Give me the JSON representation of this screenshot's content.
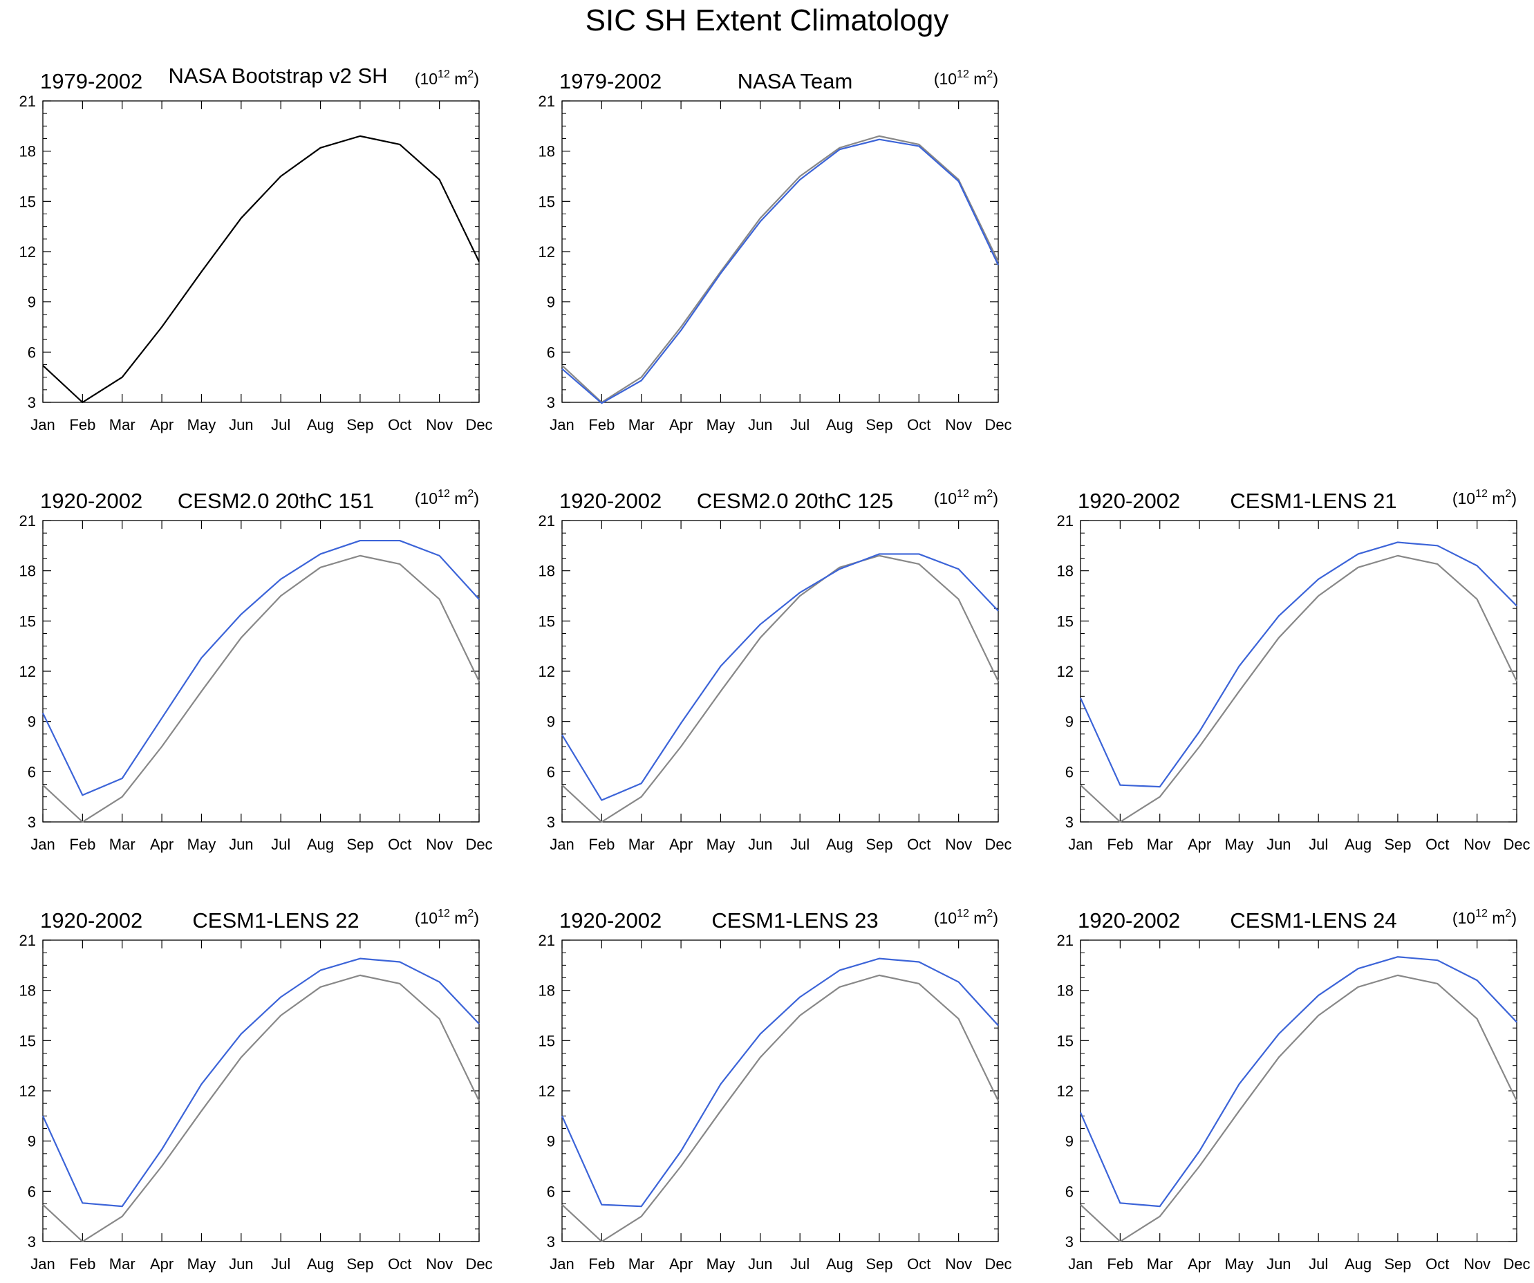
{
  "title": "SIC SH Extent Climatology",
  "chart_data": [
    {
      "type": "line",
      "period": "1979-2002",
      "title": "NASA Bootstrap v2 SH",
      "units_base": "(10",
      "units_exp": "12",
      "units_unit": " m",
      "units_pow": "2",
      "units_close": ")",
      "categories": [
        "Jan",
        "Feb",
        "Mar",
        "Apr",
        "May",
        "Jun",
        "Jul",
        "Aug",
        "Sep",
        "Oct",
        "Nov",
        "Dec"
      ],
      "ylim": [
        3,
        21
      ],
      "yticks": [
        3,
        6,
        9,
        12,
        15,
        18,
        21
      ],
      "series": [
        {
          "name": "NASA Bootstrap v2 SH",
          "color": "#000000",
          "values": [
            5.2,
            3.0,
            4.5,
            7.5,
            10.8,
            14.0,
            16.5,
            18.2,
            18.9,
            18.4,
            16.3,
            11.4
          ]
        }
      ]
    },
    {
      "type": "line",
      "period": "1979-2002",
      "title": "NASA Team",
      "units_base": "(10",
      "units_exp": "12",
      "units_unit": " m",
      "units_pow": "2",
      "units_close": ")",
      "categories": [
        "Jan",
        "Feb",
        "Mar",
        "Apr",
        "May",
        "Jun",
        "Jul",
        "Aug",
        "Sep",
        "Oct",
        "Nov",
        "Dec"
      ],
      "ylim": [
        3,
        21
      ],
      "yticks": [
        3,
        6,
        9,
        12,
        15,
        18,
        21
      ],
      "series": [
        {
          "name": "NASA Bootstrap v2 SH",
          "color": "#888888",
          "values": [
            5.2,
            3.0,
            4.5,
            7.5,
            10.8,
            14.0,
            16.5,
            18.2,
            18.9,
            18.4,
            16.3,
            11.4
          ]
        },
        {
          "name": "NASA Team",
          "color": "#3c64d8",
          "values": [
            5.0,
            2.95,
            4.3,
            7.3,
            10.7,
            13.8,
            16.3,
            18.1,
            18.7,
            18.3,
            16.2,
            11.2
          ]
        }
      ]
    },
    {
      "type": "line",
      "period": "1920-2002",
      "title": "CESM2.0 20thC 151",
      "units_base": "(10",
      "units_exp": "12",
      "units_unit": " m",
      "units_pow": "2",
      "units_close": ")",
      "categories": [
        "Jan",
        "Feb",
        "Mar",
        "Apr",
        "May",
        "Jun",
        "Jul",
        "Aug",
        "Sep",
        "Oct",
        "Nov",
        "Dec"
      ],
      "ylim": [
        3,
        21
      ],
      "yticks": [
        3,
        6,
        9,
        12,
        15,
        18,
        21
      ],
      "series": [
        {
          "name": "NASA Bootstrap v2 SH",
          "color": "#888888",
          "values": [
            5.2,
            3.0,
            4.5,
            7.5,
            10.8,
            14.0,
            16.5,
            18.2,
            18.9,
            18.4,
            16.3,
            11.4
          ]
        },
        {
          "name": "CESM2.0 20thC 151",
          "color": "#3c64d8",
          "values": [
            9.5,
            4.6,
            5.6,
            9.2,
            12.8,
            15.4,
            17.5,
            19.0,
            19.8,
            19.8,
            18.9,
            16.3
          ]
        }
      ]
    },
    {
      "type": "line",
      "period": "1920-2002",
      "title": "CESM2.0 20thC 125",
      "units_base": "(10",
      "units_exp": "12",
      "units_unit": " m",
      "units_pow": "2",
      "units_close": ")",
      "categories": [
        "Jan",
        "Feb",
        "Mar",
        "Apr",
        "May",
        "Jun",
        "Jul",
        "Aug",
        "Sep",
        "Oct",
        "Nov",
        "Dec"
      ],
      "ylim": [
        3,
        21
      ],
      "yticks": [
        3,
        6,
        9,
        12,
        15,
        18,
        21
      ],
      "series": [
        {
          "name": "NASA Bootstrap v2 SH",
          "color": "#888888",
          "values": [
            5.2,
            3.0,
            4.5,
            7.5,
            10.8,
            14.0,
            16.5,
            18.2,
            18.9,
            18.4,
            16.3,
            11.4
          ]
        },
        {
          "name": "CESM2.0 20thC 125",
          "color": "#3c64d8",
          "values": [
            8.2,
            4.3,
            5.3,
            8.9,
            12.3,
            14.8,
            16.7,
            18.1,
            19.0,
            19.0,
            18.1,
            15.6
          ]
        }
      ]
    },
    {
      "type": "line",
      "period": "1920-2002",
      "title": "CESM1-LENS 21",
      "units_base": "(10",
      "units_exp": "12",
      "units_unit": " m",
      "units_pow": "2",
      "units_close": ")",
      "categories": [
        "Jan",
        "Feb",
        "Mar",
        "Apr",
        "May",
        "Jun",
        "Jul",
        "Aug",
        "Sep",
        "Oct",
        "Nov",
        "Dec"
      ],
      "ylim": [
        3,
        21
      ],
      "yticks": [
        3,
        6,
        9,
        12,
        15,
        18,
        21
      ],
      "series": [
        {
          "name": "NASA Bootstrap v2 SH",
          "color": "#888888",
          "values": [
            5.2,
            3.0,
            4.5,
            7.5,
            10.8,
            14.0,
            16.5,
            18.2,
            18.9,
            18.4,
            16.3,
            11.4
          ]
        },
        {
          "name": "CESM1-LENS 21",
          "color": "#3c64d8",
          "values": [
            10.4,
            5.2,
            5.1,
            8.4,
            12.3,
            15.3,
            17.5,
            19.0,
            19.7,
            19.5,
            18.3,
            15.9
          ]
        }
      ]
    },
    {
      "type": "line",
      "period": "1920-2002",
      "title": "CESM1-LENS 22",
      "units_base": "(10",
      "units_exp": "12",
      "units_unit": " m",
      "units_pow": "2",
      "units_close": ")",
      "categories": [
        "Jan",
        "Feb",
        "Mar",
        "Apr",
        "May",
        "Jun",
        "Jul",
        "Aug",
        "Sep",
        "Oct",
        "Nov",
        "Dec"
      ],
      "ylim": [
        3,
        21
      ],
      "yticks": [
        3,
        6,
        9,
        12,
        15,
        18,
        21
      ],
      "series": [
        {
          "name": "NASA Bootstrap v2 SH",
          "color": "#888888",
          "values": [
            5.2,
            3.0,
            4.5,
            7.5,
            10.8,
            14.0,
            16.5,
            18.2,
            18.9,
            18.4,
            16.3,
            11.4
          ]
        },
        {
          "name": "CESM1-LENS 22",
          "color": "#3c64d8",
          "values": [
            10.5,
            5.3,
            5.1,
            8.5,
            12.4,
            15.4,
            17.6,
            19.2,
            19.9,
            19.7,
            18.5,
            16.0
          ]
        }
      ]
    },
    {
      "type": "line",
      "period": "1920-2002",
      "title": "CESM1-LENS 23",
      "units_base": "(10",
      "units_exp": "12",
      "units_unit": " m",
      "units_pow": "2",
      "units_close": ")",
      "categories": [
        "Jan",
        "Feb",
        "Mar",
        "Apr",
        "May",
        "Jun",
        "Jul",
        "Aug",
        "Sep",
        "Oct",
        "Nov",
        "Dec"
      ],
      "ylim": [
        3,
        21
      ],
      "yticks": [
        3,
        6,
        9,
        12,
        15,
        18,
        21
      ],
      "series": [
        {
          "name": "NASA Bootstrap v2 SH",
          "color": "#888888",
          "values": [
            5.2,
            3.0,
            4.5,
            7.5,
            10.8,
            14.0,
            16.5,
            18.2,
            18.9,
            18.4,
            16.3,
            11.4
          ]
        },
        {
          "name": "CESM1-LENS 23",
          "color": "#3c64d8",
          "values": [
            10.5,
            5.2,
            5.1,
            8.4,
            12.4,
            15.4,
            17.6,
            19.2,
            19.9,
            19.7,
            18.5,
            15.9
          ]
        }
      ]
    },
    {
      "type": "line",
      "period": "1920-2002",
      "title": "CESM1-LENS 24",
      "units_base": "(10",
      "units_exp": "12",
      "units_unit": " m",
      "units_pow": "2",
      "units_close": ")",
      "categories": [
        "Jan",
        "Feb",
        "Mar",
        "Apr",
        "May",
        "Jun",
        "Jul",
        "Aug",
        "Sep",
        "Oct",
        "Nov",
        "Dec"
      ],
      "ylim": [
        3,
        21
      ],
      "yticks": [
        3,
        6,
        9,
        12,
        15,
        18,
        21
      ],
      "series": [
        {
          "name": "NASA Bootstrap v2 SH",
          "color": "#888888",
          "values": [
            5.2,
            3.0,
            4.5,
            7.5,
            10.8,
            14.0,
            16.5,
            18.2,
            18.9,
            18.4,
            16.3,
            11.4
          ]
        },
        {
          "name": "CESM1-LENS 24",
          "color": "#3c64d8",
          "values": [
            10.7,
            5.3,
            5.1,
            8.4,
            12.4,
            15.4,
            17.7,
            19.3,
            20.0,
            19.8,
            18.6,
            16.1
          ]
        }
      ]
    }
  ]
}
